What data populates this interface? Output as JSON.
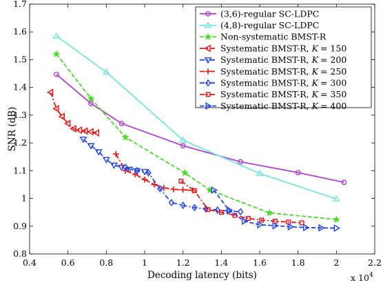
{
  "chart_data": {
    "type": "line",
    "xlabel": "Decoding latency (bits)",
    "ylabel": "SNR (dB)",
    "x_multiplier_label": "x 10",
    "x_multiplier_exponent": "4",
    "xlim": [
      0.4,
      2.2
    ],
    "ylim": [
      0.8,
      1.7
    ],
    "x_unit_factor": 10000,
    "xticks": [
      0.4,
      0.6,
      0.8,
      1,
      1.2,
      1.4,
      1.6,
      1.8,
      2,
      2.2
    ],
    "xtick_labels": [
      "0.4",
      "0.6",
      "0.8",
      "1",
      "1.2",
      "1.4",
      "1.6",
      "1.8",
      "2",
      "2.2"
    ],
    "yticks": [
      0.8,
      0.9,
      1,
      1.1,
      1.2,
      1.3,
      1.4,
      1.5,
      1.6,
      1.7
    ],
    "ytick_labels": [
      "0.8",
      "0.9",
      "1",
      "1.1",
      "1.2",
      "1.3",
      "1.4",
      "1.5",
      "1.6",
      "1.7"
    ],
    "grid": false,
    "legend_position": "top-right",
    "series": [
      {
        "name": "(3,6)-regular SC-LDPC",
        "color": "#b040d8",
        "dash": "solid",
        "marker": "circle",
        "x": [
          5400,
          7200,
          8800,
          12000,
          15000,
          18000,
          20400
        ],
        "y": [
          1.447,
          1.342,
          1.27,
          1.19,
          1.132,
          1.093,
          1.058
        ]
      },
      {
        "name": "(4,8)-regular SC-LDPC",
        "color": "#78e6dc",
        "dash": "solid",
        "marker": "triangle-up",
        "x": [
          5400,
          8000,
          12000,
          16000,
          20000
        ],
        "y": [
          1.585,
          1.455,
          1.21,
          1.09,
          0.998
        ]
      },
      {
        "name": "Non-systematic BMST-R",
        "color": "#44dd22",
        "dash": "dashed",
        "marker": "star",
        "x": [
          5400,
          7200,
          9000,
          12100,
          13400,
          16500,
          20000
        ],
        "y": [
          1.52,
          1.36,
          1.22,
          1.092,
          1.03,
          0.948,
          0.924
        ]
      },
      {
        "name": "Systematic BMST-R, K = 150",
        "label_prefix": "Systematic BMST-R,",
        "label_var": "K",
        "label_value": "= 150",
        "color": "#ee1111",
        "dash": "dashdot",
        "marker": "triangle-left",
        "x": [
          5100,
          5400,
          5700,
          6000,
          6300,
          6600,
          6900,
          7200,
          7500
        ],
        "y": [
          1.382,
          1.323,
          1.295,
          1.27,
          1.251,
          1.246,
          1.243,
          1.24,
          1.236
        ]
      },
      {
        "name": "Systematic BMST-R, K = 200",
        "label_prefix": "Systematic BMST-R,",
        "label_var": "K",
        "label_value": "= 200",
        "color": "#2244ee",
        "dash": "dashdot",
        "marker": "triangle-down",
        "x": [
          6800,
          7200,
          7600,
          8000,
          8400,
          8800,
          9200,
          9600,
          10000
        ],
        "y": [
          1.213,
          1.19,
          1.168,
          1.14,
          1.12,
          1.112,
          1.105,
          1.1,
          1.097
        ]
      },
      {
        "name": "Systematic BMST-R, K = 250",
        "label_prefix": "Systematic BMST-R,",
        "label_var": "K",
        "label_value": "= 250",
        "color": "#ee1111",
        "dash": "dashdot",
        "marker": "plus",
        "x": [
          8500,
          9000,
          9500,
          10000,
          10500,
          11000,
          11500,
          12000,
          12500
        ],
        "y": [
          1.16,
          1.1,
          1.087,
          1.068,
          1.05,
          1.038,
          1.033,
          1.031,
          1.029
        ]
      },
      {
        "name": "Systematic BMST-R, K = 300",
        "label_prefix": "Systematic BMST-R,",
        "label_var": "K",
        "label_value": "= 300",
        "color": "#2244ee",
        "dash": "dashdot",
        "marker": "diamond",
        "x": [
          9000,
          9600,
          10200,
          10800,
          11400,
          12000,
          12600,
          13200,
          13800,
          14400,
          15000
        ],
        "y": [
          1.112,
          1.1,
          1.092,
          1.035,
          0.985,
          0.975,
          0.967,
          0.962,
          0.958,
          0.955,
          0.952
        ]
      },
      {
        "name": "Systematic BMST-R, K = 350",
        "label_prefix": "Systematic BMST-R,",
        "label_var": "K",
        "label_value": "= 350",
        "color": "#ee1111",
        "dash": "dashdot",
        "marker": "square",
        "x": [
          11900,
          12600,
          13300,
          14000,
          14700,
          15400,
          16100,
          16800,
          17500,
          18200
        ],
        "y": [
          1.062,
          1.028,
          0.96,
          0.95,
          0.939,
          0.928,
          0.922,
          0.918,
          0.915,
          0.912
        ]
      },
      {
        "name": "Systematic BMST-R, K = 400",
        "label_prefix": "Systematic BMST-R,",
        "label_var": "K",
        "label_value": "= 400",
        "color": "#2244ee",
        "dash": "dashed",
        "marker": "triangle-right",
        "x": [
          13600,
          14400,
          15200,
          16000,
          16800,
          17600,
          18400,
          19200,
          20000
        ],
        "y": [
          1.03,
          0.958,
          0.918,
          0.905,
          0.902,
          0.898,
          0.895,
          0.894,
          0.893
        ]
      }
    ]
  }
}
